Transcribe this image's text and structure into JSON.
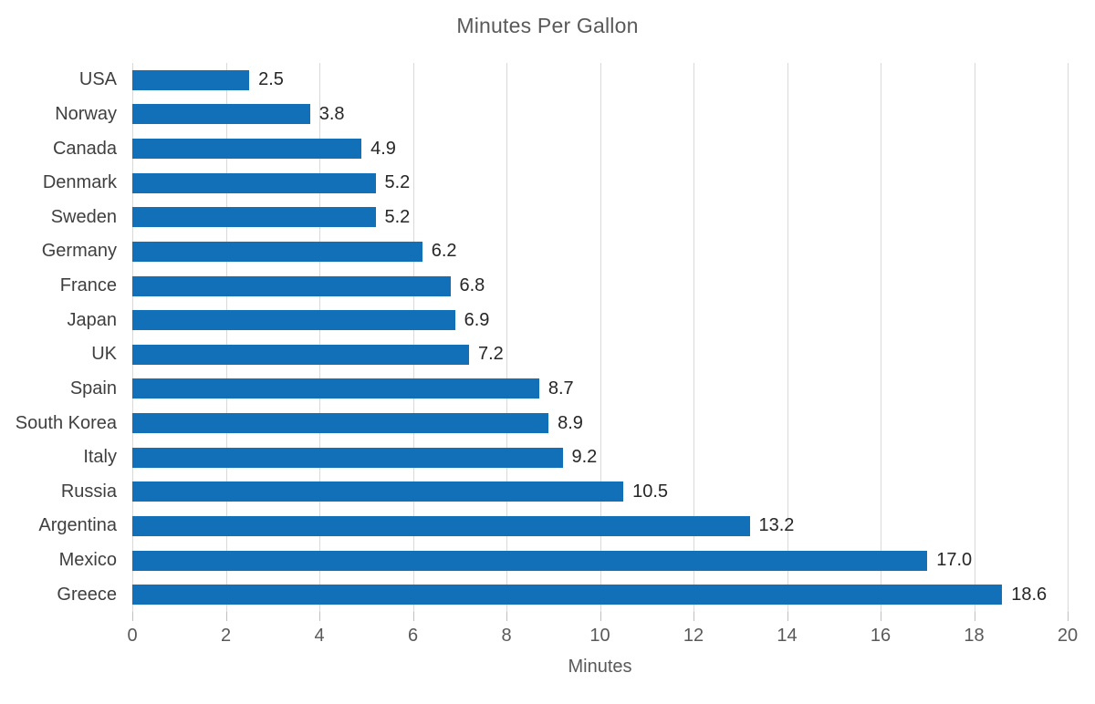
{
  "chart_data": {
    "type": "bar",
    "orientation": "horizontal",
    "title": "Minutes Per Gallon",
    "xlabel": "Minutes",
    "categories": [
      "USA",
      "Norway",
      "Canada",
      "Denmark",
      "Sweden",
      "Germany",
      "France",
      "Japan",
      "UK",
      "Spain",
      "South Korea",
      "Italy",
      "Russia",
      "Argentina",
      "Mexico",
      "Greece"
    ],
    "values": [
      2.5,
      3.8,
      4.9,
      5.2,
      5.2,
      6.2,
      6.8,
      6.9,
      7.2,
      8.7,
      8.9,
      9.2,
      10.5,
      13.2,
      17.0,
      18.6
    ],
    "value_label_decimals": 1,
    "xlim": [
      0,
      20
    ],
    "xticks": [
      0,
      2,
      4,
      6,
      8,
      10,
      12,
      14,
      16,
      18,
      20
    ],
    "grid": "vertical-only",
    "legend": "none",
    "colors": {
      "bar": "#1170B7",
      "gridline": "#D9D9D9",
      "tick_mark": "#BFBFBF",
      "title_text": "#595959",
      "axis_text": "#595959",
      "category_text": "#3F3F3F",
      "value_text": "#262626",
      "background": "#FFFFFF"
    }
  }
}
